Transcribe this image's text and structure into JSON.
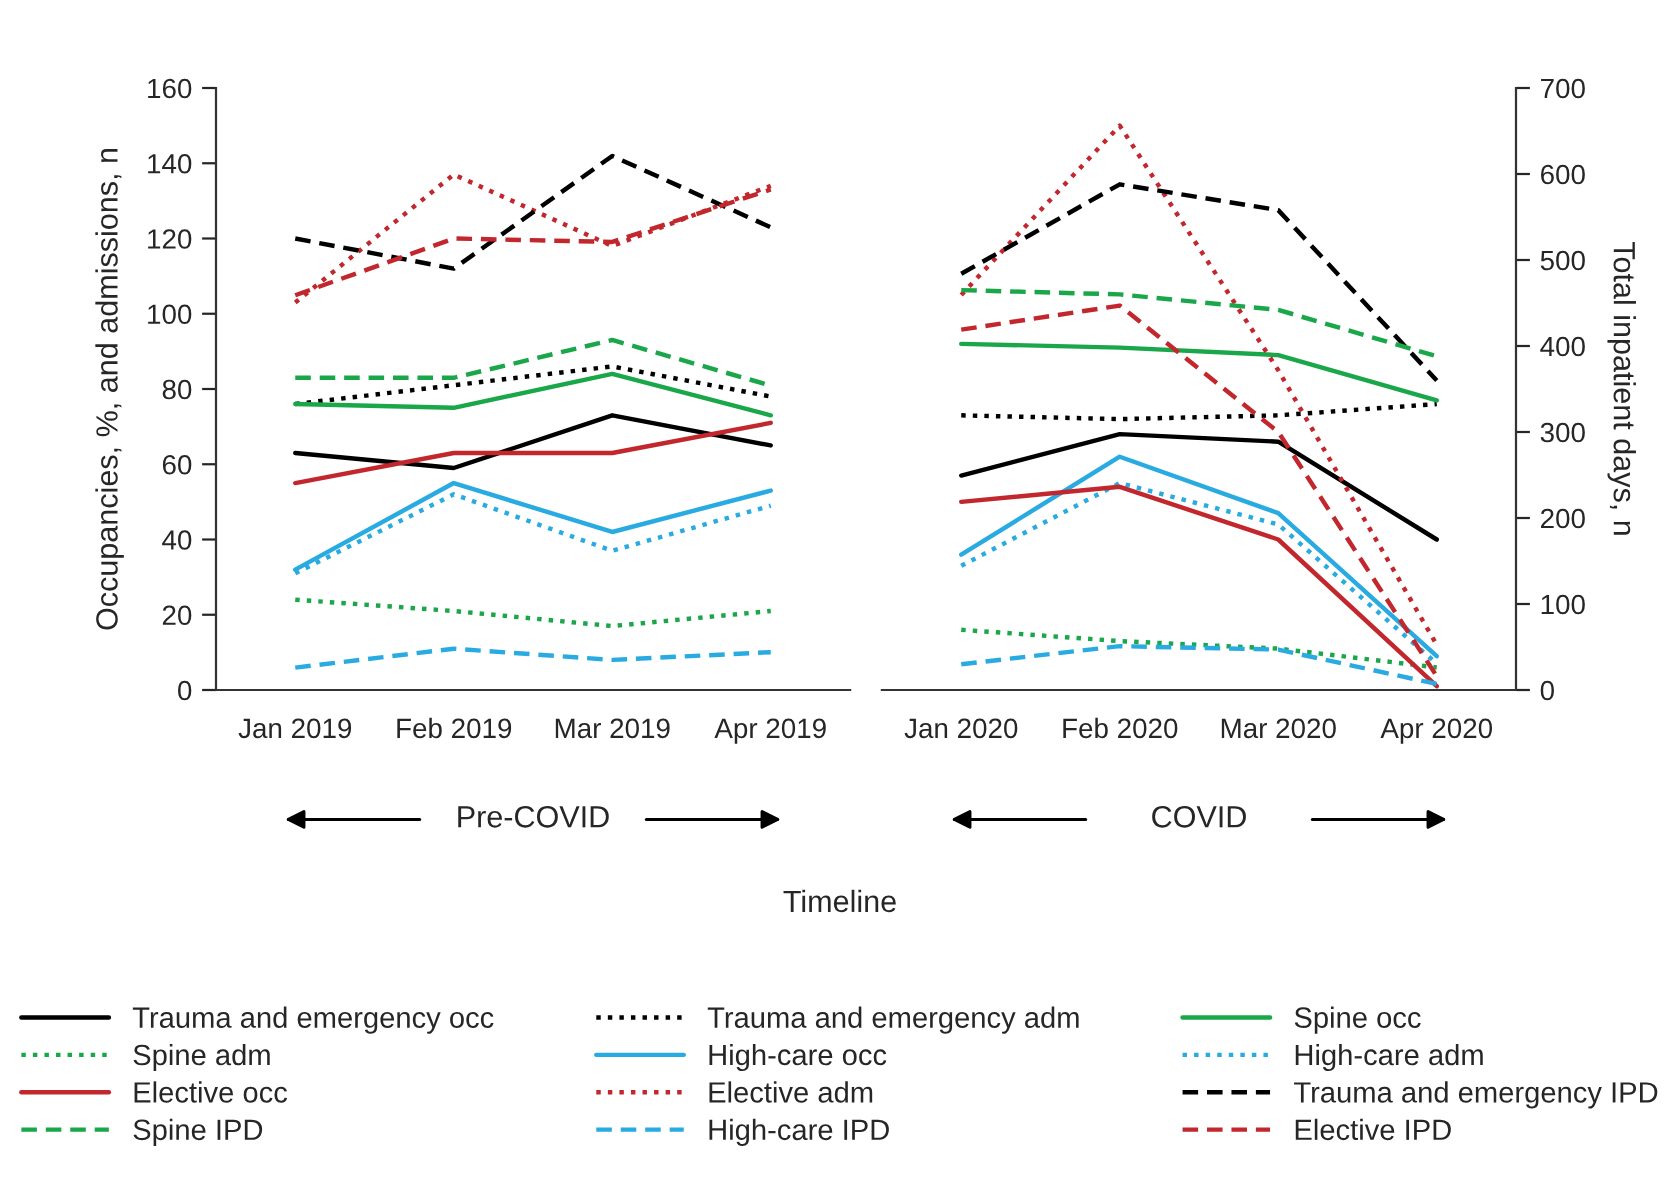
{
  "chart_data": [
    {
      "type": "line",
      "categories": [
        "Jan 2019",
        "Feb 2019",
        "Mar 2019",
        "Apr 2019"
      ],
      "ylabel": "Occupancies, %, and admissions, n",
      "xlabel": "Timeline",
      "ylim": [
        0,
        160
      ],
      "yticks": [
        0,
        20,
        40,
        60,
        80,
        100,
        120,
        140,
        160
      ],
      "y2lim": [
        0,
        700
      ],
      "tick_labels": [
        "x",
        "y"
      ],
      "grid": false,
      "legend": "bottom",
      "annotations": [
        "Pre-COVID"
      ],
      "series": [
        {
          "name": "Trauma and emergency occ",
          "color": "#000000",
          "line_style": "solid",
          "values": [
            63,
            59,
            73,
            65
          ]
        },
        {
          "name": "Trauma and emergency adm",
          "color": "#000000",
          "line_style": "dotted",
          "values": [
            76,
            81,
            86,
            78
          ]
        },
        {
          "name": "Spine occ",
          "color": "#1aa74a",
          "line_style": "solid",
          "values": [
            76,
            75,
            84,
            73
          ]
        },
        {
          "name": "Spine adm",
          "color": "#1aa74a",
          "line_style": "dotted",
          "values": [
            24,
            21,
            17,
            21
          ]
        },
        {
          "name": "High-care occ",
          "color": "#29abe2",
          "line_style": "solid",
          "values": [
            32,
            55,
            42,
            53
          ]
        },
        {
          "name": "High-care adm",
          "color": "#29abe2",
          "line_style": "dotted",
          "values": [
            31,
            52,
            37,
            49
          ]
        },
        {
          "name": "Elective occ",
          "color": "#c1272d",
          "line_style": "solid",
          "values": [
            55,
            63,
            63,
            71
          ]
        },
        {
          "name": "Elective adm",
          "color": "#c1272d",
          "line_style": "dotted",
          "values": [
            103,
            137,
            118,
            134
          ]
        },
        {
          "name": "Trauma and emergency IPD",
          "color": "#000000",
          "line_style": "dashed",
          "axis": "y2",
          "values": [
            525,
            490,
            621,
            538
          ]
        },
        {
          "name": "Spine IPD",
          "color": "#1aa74a",
          "line_style": "dashed",
          "axis": "y2",
          "values": [
            363,
            363,
            407,
            354
          ]
        },
        {
          "name": "High-care IPD",
          "color": "#29abe2",
          "line_style": "dashed",
          "axis": "y2",
          "values": [
            26,
            48,
            35,
            44
          ]
        },
        {
          "name": "Elective IPD",
          "color": "#c1272d",
          "line_style": "dashed",
          "axis": "y2",
          "values": [
            459,
            525,
            521,
            582
          ]
        }
      ]
    },
    {
      "type": "line",
      "categories": [
        "Jan 2020",
        "Feb 2020",
        "Mar 2020",
        "Apr 2020"
      ],
      "y2label": "Total inpatient days, n",
      "ylim": [
        0,
        160
      ],
      "y2lim": [
        0,
        700
      ],
      "y2ticks": [
        0,
        100,
        200,
        300,
        400,
        500,
        600,
        700
      ],
      "tick_labels": [
        "x",
        "y2"
      ],
      "grid": false,
      "annotations": [
        "COVID"
      ],
      "series": [
        {
          "color": "#000000",
          "line_style": "solid",
          "values": [
            57,
            68,
            66,
            40
          ]
        },
        {
          "color": "#000000",
          "line_style": "dotted",
          "values": [
            73,
            72,
            73,
            76
          ]
        },
        {
          "color": "#1aa74a",
          "line_style": "solid",
          "values": [
            92,
            91,
            89,
            77
          ]
        },
        {
          "color": "#1aa74a",
          "line_style": "dotted",
          "values": [
            16,
            13,
            11,
            6
          ]
        },
        {
          "color": "#29abe2",
          "line_style": "solid",
          "values": [
            36,
            62,
            47,
            9
          ]
        },
        {
          "color": "#29abe2",
          "line_style": "dotted",
          "values": [
            33,
            55,
            44,
            7
          ]
        },
        {
          "color": "#c1272d",
          "line_style": "solid",
          "values": [
            50,
            54,
            40,
            1
          ]
        },
        {
          "color": "#c1272d",
          "line_style": "dotted",
          "values": [
            105,
            150,
            85,
            12
          ]
        },
        {
          "color": "#000000",
          "line_style": "dashed",
          "axis": "y2",
          "values": [
            484,
            588,
            558,
            360
          ]
        },
        {
          "color": "#1aa74a",
          "line_style": "dashed",
          "axis": "y2",
          "values": [
            465,
            460,
            442,
            388
          ]
        },
        {
          "color": "#29abe2",
          "line_style": "dashed",
          "axis": "y2",
          "values": [
            30,
            51,
            47,
            7
          ]
        },
        {
          "color": "#c1272d",
          "line_style": "dashed",
          "axis": "y2",
          "values": [
            419,
            447,
            300,
            16
          ]
        }
      ]
    }
  ]
}
